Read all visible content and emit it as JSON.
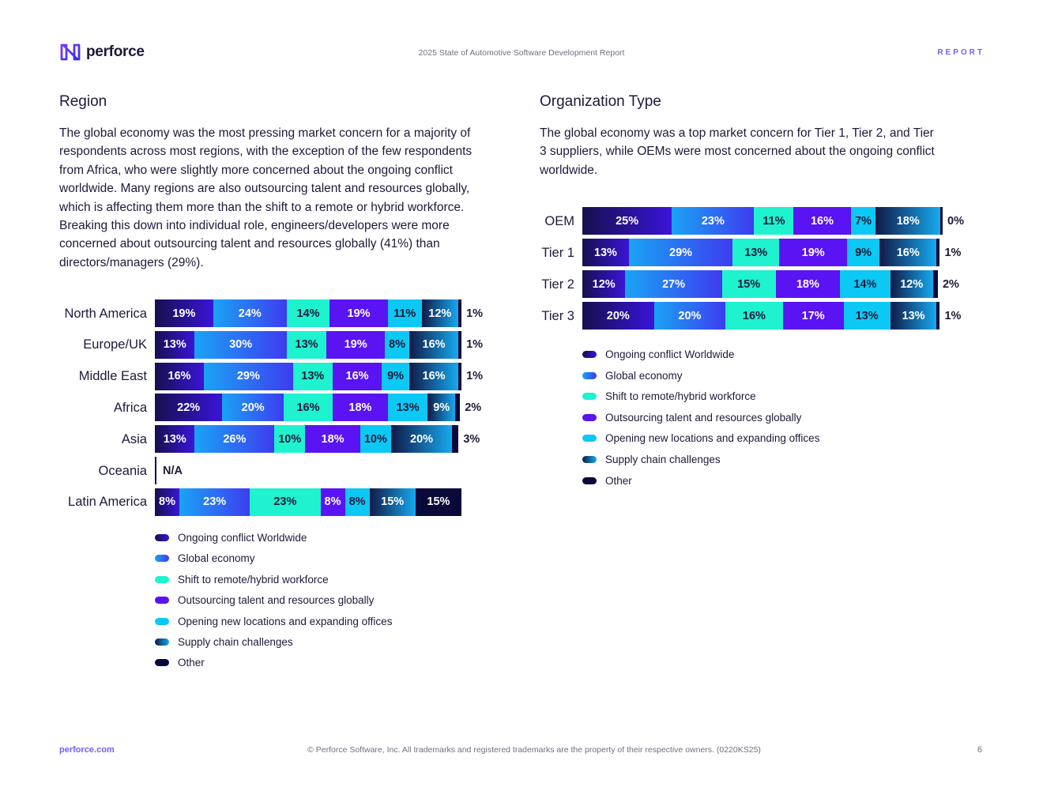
{
  "header": {
    "logo_text": "perforce",
    "title": "2025 State of Automotive Software Development Report",
    "tag": "REPORT"
  },
  "region": {
    "title": "Region",
    "text": "The global economy was the most pressing market concern for a majority of respondents across most regions, with the exception of the few respondents from Africa, who were slightly more concerned about the ongoing conflict worldwide. Many regions are also outsourcing talent and resources globally, which is affecting them more than the shift to a remote or hybrid workforce. Breaking this down into individual role, engineers/developers were more concerned about outsourcing talent and resources globally (41%) than directors/managers (29%)."
  },
  "org": {
    "title": "Organization Type",
    "text": "The global economy was a top market concern for Tier 1, Tier 2, and Tier 3 suppliers, while OEMs were most concerned about the ongoing conflict worldwide."
  },
  "series_styles": [
    {
      "name": "Ongoing conflict Worldwide",
      "colors": [
        "#16104f",
        "#3a14d8"
      ],
      "text": "#ffffff"
    },
    {
      "name": "Global economy",
      "colors": [
        "#1aa3f5",
        "#3d3cf0"
      ],
      "text": "#ffffff"
    },
    {
      "name": "Shift to remote/hybrid workforce",
      "colors": [
        "#1ef2cf",
        "#1ef2cf"
      ],
      "text": "#1c1a3a"
    },
    {
      "name": "Outsourcing talent and resources globally",
      "colors": [
        "#5a13f2",
        "#5a13f2"
      ],
      "text": "#ffffff"
    },
    {
      "name": "Opening new locations and expanding offices",
      "colors": [
        "#0cc8f5",
        "#0cc8f5"
      ],
      "text": "#1c1a3a"
    },
    {
      "name": "Supply chain challenges",
      "colors": [
        "#101a48",
        "#16a9ef"
      ],
      "text": "#ffffff"
    },
    {
      "name": "Other",
      "colors": [
        "#0a0a3a",
        "#0a0a3a"
      ],
      "text": "#ffffff"
    }
  ],
  "chart_data": [
    {
      "type": "bar",
      "orientation": "horizontal",
      "stacked": true,
      "categories": [
        "North America",
        "Europe/UK",
        "Middle East",
        "Africa",
        "Asia",
        "Oceania",
        "Latin America"
      ],
      "series": [
        {
          "name": "Ongoing conflict Worldwide",
          "values": [
            19,
            13,
            16,
            22,
            13,
            null,
            8
          ]
        },
        {
          "name": "Global economy",
          "values": [
            24,
            30,
            29,
            20,
            26,
            null,
            23
          ]
        },
        {
          "name": "Shift to remote/hybrid workforce",
          "values": [
            14,
            13,
            13,
            16,
            10,
            null,
            23
          ]
        },
        {
          "name": "Outsourcing talent and resources globally",
          "values": [
            19,
            19,
            16,
            18,
            18,
            null,
            8
          ]
        },
        {
          "name": "Opening new locations and expanding offices",
          "values": [
            11,
            8,
            9,
            13,
            10,
            null,
            8
          ]
        },
        {
          "name": "Supply chain challenges",
          "values": [
            12,
            16,
            16,
            9,
            20,
            null,
            15
          ]
        },
        {
          "name": "Other",
          "values": [
            1,
            1,
            1,
            2,
            3,
            null,
            15
          ]
        }
      ],
      "labels": [
        [
          "19%",
          "24%",
          "14%",
          "19%",
          "11%",
          "12%",
          "1%"
        ],
        [
          "13%",
          "30%",
          "13%",
          "19%",
          "8%",
          "16%",
          "1%"
        ],
        [
          "16%",
          "29%",
          "13%",
          "16%",
          "9%",
          "16%",
          "1%"
        ],
        [
          "22%",
          "20%",
          "16%",
          "18%",
          "13%",
          "9%",
          "2%"
        ],
        [
          "13%",
          "26%",
          "10%",
          "18%",
          "10%",
          "20%",
          "3%"
        ],
        [],
        [
          "8%",
          "23%",
          "23%",
          "8%",
          "8%",
          "15%",
          "15%"
        ]
      ],
      "na_text": "N/A",
      "legend": "bottom"
    },
    {
      "type": "bar",
      "orientation": "horizontal",
      "stacked": true,
      "categories": [
        "OEM",
        "Tier 1",
        "Tier 2",
        "Tier 3"
      ],
      "series": [
        {
          "name": "Ongoing conflict Worldwide",
          "values": [
            25,
            13,
            12,
            20
          ]
        },
        {
          "name": "Global economy",
          "values": [
            23,
            29,
            27,
            20
          ]
        },
        {
          "name": "Shift to remote/hybrid workforce",
          "values": [
            11,
            13,
            15,
            16
          ]
        },
        {
          "name": "Outsourcing talent and resources globally",
          "values": [
            16,
            19,
            18,
            17
          ]
        },
        {
          "name": "Opening new locations and expanding offices",
          "values": [
            7,
            9,
            14,
            13
          ]
        },
        {
          "name": "Supply chain challenges",
          "values": [
            18,
            16,
            12,
            13
          ]
        },
        {
          "name": "Other",
          "values": [
            0,
            1,
            2,
            1
          ]
        }
      ],
      "labels": [
        [
          "25%",
          "23%",
          "11%",
          "16%",
          "7%",
          "18%",
          "0%"
        ],
        [
          "13%",
          "29%",
          "13%",
          "19%",
          "9%",
          "16%",
          "1%"
        ],
        [
          "12%",
          "27%",
          "15%",
          "18%",
          "14%",
          "12%",
          "2%"
        ],
        [
          "20%",
          "20%",
          "16%",
          "17%",
          "13%",
          "13%",
          "1%"
        ]
      ],
      "legend": "bottom"
    }
  ],
  "footer": {
    "link": "perforce.com",
    "copyright": "© Perforce Software, Inc. All trademarks and registered trademarks are the property of their respective owners. (0220KS25)",
    "page": "6"
  }
}
